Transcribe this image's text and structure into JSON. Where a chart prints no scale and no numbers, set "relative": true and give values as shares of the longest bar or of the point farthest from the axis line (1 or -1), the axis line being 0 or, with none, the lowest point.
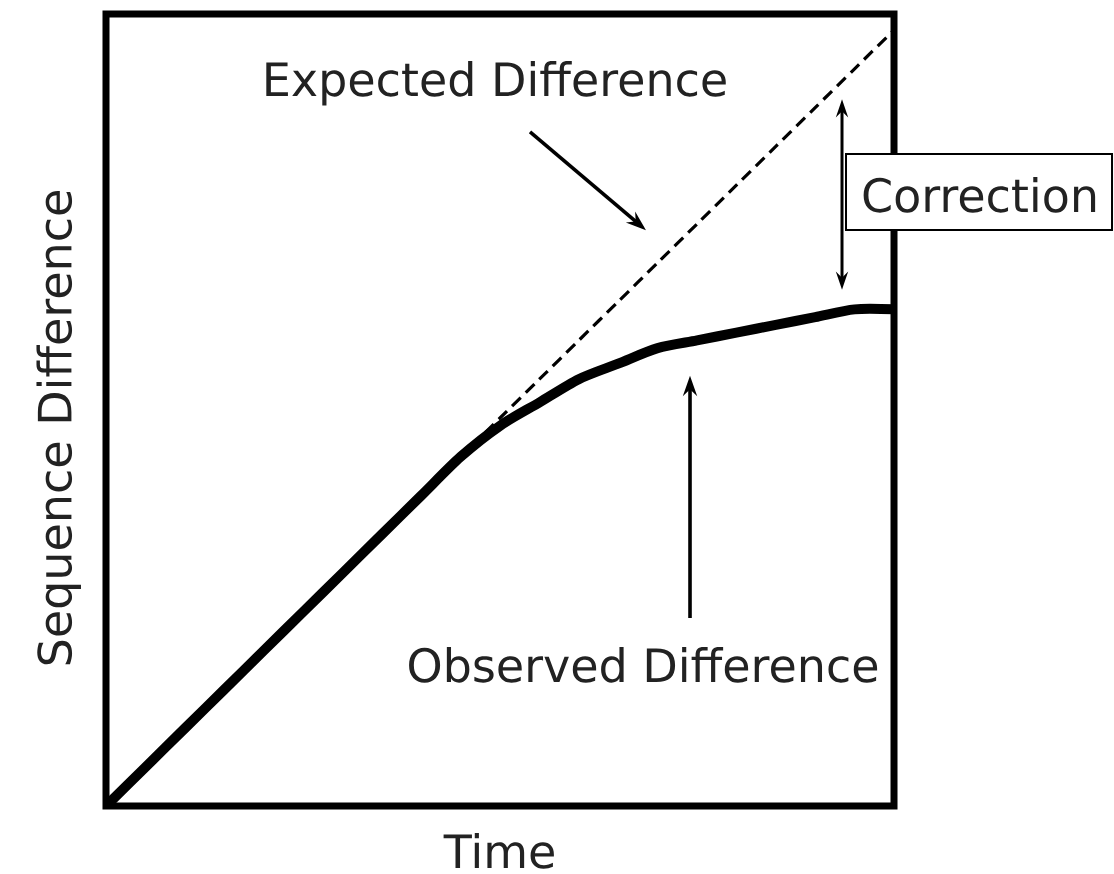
{
  "chart_data": {
    "type": "line",
    "relative": true,
    "xlabel": "Time",
    "ylabel": "Sequence Difference",
    "categories": [
      null,
      null,
      null,
      null,
      null,
      null,
      null,
      null,
      null,
      null,
      null,
      null,
      null,
      null,
      null,
      null,
      null,
      null,
      null,
      null,
      null
    ],
    "series": [
      {
        "name": "Expected Difference",
        "color": "#000000",
        "line_style": "dashed",
        "values": [
          0,
          0.05,
          0.1,
          0.15,
          0.2,
          0.25,
          0.3,
          0.35,
          0.4,
          0.45,
          0.5,
          0.55,
          0.6,
          0.65,
          0.7,
          0.75,
          0.8,
          0.85,
          0.9,
          0.95,
          1
        ]
      },
      {
        "name": "Observed Difference",
        "color": "#000000",
        "line_style": "solid",
        "values": [
          0,
          0.05,
          0.1,
          0.15,
          0.2,
          0.25,
          0.3,
          0.35,
          0.4,
          0.45,
          0.49,
          0.52,
          0.55,
          0.57,
          0.59,
          0.6,
          0.61,
          0.62,
          0.63,
          0.64,
          0.64
        ]
      }
    ],
    "annotations": [
      "Correction"
    ],
    "legend": false,
    "marker": "none"
  }
}
